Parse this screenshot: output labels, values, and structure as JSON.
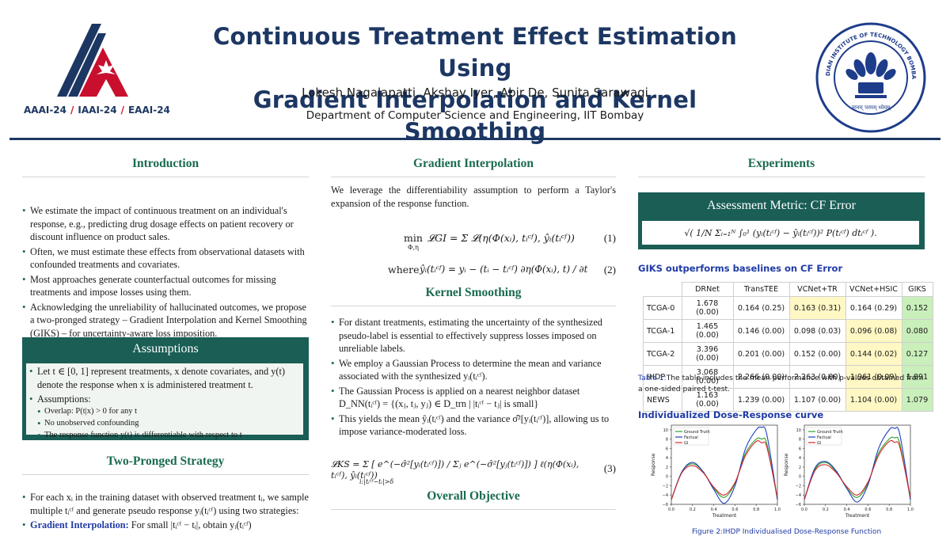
{
  "header": {
    "title_line1": "Continuous Treatment Effect Estimation Using",
    "title_line2": "Gradient Interpolation and Kernel Smoothing",
    "authors": "Lokesh Nagalapatti, Akshay Iyer, Abir De, Sunita Sarawagi",
    "department": "Department of Computer Science and Engineering, IIT Bombay",
    "conference": [
      "AAAI-24",
      "IAAI-24",
      "EAAI-24"
    ],
    "separator": "/",
    "seal_motto": "ज्ञानम् परमम् ध्येयम्",
    "seal_name": "INDIAN INSTITUTE OF TECHNOLOGY BOMBAY"
  },
  "introduction": {
    "heading": "Introduction",
    "bullets": [
      "We estimate the impact of continuous treatment on an individual's response, e.g., predicting drug dosage effects on patient recovery or discount influence on product sales.",
      "Often, we must estimate these effects from observational datasets with confounded treatments and covariates.",
      "Most approaches generate counterfactual outcomes for missing treatments and impose losses using them.",
      "Acknowledging the unreliability of hallucinated outcomes, we propose a two-pronged strategy – Gradient Interpolation and Kernel Smoothing (GIKS) – for uncertainty-aware loss imposition."
    ]
  },
  "assumptions": {
    "heading": "Assumptions",
    "bullet1": "Let t ∈ [0, 1] represent treatments, x denote covariates, and y(t) denote the response when x is administered treatment t.",
    "bullet2": "Assumptions:",
    "sub": [
      "Overlap: P(t|x) > 0 for any t",
      "No unobserved confounding",
      "The response function y(t) is differentiable with respect to t"
    ]
  },
  "two_pronged": {
    "heading": "Two-Pronged Strategy",
    "bullet1": "For each xᵢ in the training dataset with observed treatment tᵢ, we sample multiple tᵢᶜᶠ and generate pseudo response yᵢ(tᵢᶜᶠ) using two strategies:",
    "bullet2_bold": "Gradient Interpolation:",
    "bullet2_rest": " For small |tᵢᶜᶠ − tᵢ|, obtain yᵢ(tᵢᶜᶠ)"
  },
  "gradient_interpolation": {
    "heading": "Gradient Interpolation",
    "text": "We leverage the differentiability assumption to perform a Taylor's expansion of the response function.",
    "eq1_lhs": "min",
    "eq1_sub": "Φ,η",
    "eq1": "𝓛GI = Σ 𝓛(η(Φ(xᵢ), tᵢᶜᶠ), ŷᵢ(tᵢᶜᶠ))",
    "eq1_num": "(1)",
    "eq2_where": "where",
    "eq2": "ŷᵢ(tᵢᶜᶠ) = yᵢ − (tᵢ − tᵢᶜᶠ) ∂η(Φ(xᵢ), t) / ∂t",
    "eq2_num": "(2)"
  },
  "kernel_smoothing": {
    "heading": "Kernel Smoothing",
    "bullets": [
      "For distant treatments, estimating the uncertainty of the synthesized pseudo-label is essential to effectively suppress losses imposed on unreliable labels.",
      "We employ a Gaussian Process to determine the mean and variance associated with the synthesized yᵢ(tᵢᶜᶠ).",
      "The Gaussian Process is applied on a nearest neighbor dataset D_NN(tᵢᶜᶠ) = {(xⱼ, tⱼ, yⱼ) ∈ D_trn | |tᵢᶜᶠ − tⱼ| is small}",
      "This yields the mean ŷᵢ(tᵢᶜᶠ) and the variance σ̂²[yᵢ(tᵢᶜᶠ)], allowing us to impose variance-moderated loss."
    ],
    "eq3": "𝓛KS = Σ  [ e^(−σ̂²[yᵢ(tᵢᶜᶠ)]) / Σⱼ e^(−σ̂²[yⱼ(tᵢᶜᶠ)]) ] ℓ(η(Φ(xᵢ), tᵢᶜᶠ), ŷᵢ(tᵢᶜᶠ))",
    "eq3_sub": "i:|tᵢᶜᶠ−tᵢ|>δ",
    "eq3_num": "(3)"
  },
  "overall": {
    "heading": "Overall Objective"
  },
  "experiments": {
    "heading": "Experiments",
    "metric_heading": "Assessment Metric: CF Error",
    "metric_formula": "√( 1/N Σᵢ₌₁ᴺ ∫₀¹ (yᵢ(tᵢᶜᶠ) − ŷᵢ(tᵢᶜᶠ))² P(tᵢᶜᶠ) dtᵢᶜᶠ ).",
    "table_title": "GIKS outperforms baselines on CF Error",
    "table": {
      "columns": [
        "",
        "DRNet",
        "TransTEE",
        "VCNet+TR",
        "VCNet+HSIC",
        "GIKS"
      ],
      "rows": [
        [
          "TCGA-0",
          "1.678 (0.00)",
          "0.164 (0.25)",
          "0.163 (0.31)",
          "0.164 (0.29)",
          "0.152"
        ],
        [
          "TCGA-1",
          "1.465 (0.00)",
          "0.146 (0.00)",
          "0.098 (0.03)",
          "0.096 (0.08)",
          "0.080"
        ],
        [
          "TCGA-2",
          "3.396 (0.00)",
          "0.201 (0.00)",
          "0.152 (0.00)",
          "0.144 (0.02)",
          "0.127"
        ],
        [
          "IHDP",
          "3.068 (0.00)",
          "2.266 (0.00)",
          "2.263 (0.00)",
          "1.961 (0.09)",
          "1.891"
        ],
        [
          "NEWS",
          "1.163 (0.00)",
          "1.239 (0.00)",
          "1.107 (0.00)",
          "1.104 (0.00)",
          "1.079"
        ]
      ],
      "highlight_yellow": [
        [
          0,
          3
        ],
        [
          1,
          4
        ],
        [
          2,
          4
        ],
        [
          3,
          4
        ],
        [
          4,
          4
        ]
      ],
      "highlight_green": [
        [
          0,
          5
        ],
        [
          1,
          5
        ],
        [
          2,
          5
        ],
        [
          3,
          5
        ],
        [
          4,
          5
        ]
      ]
    },
    "table_caption_label": "Table 1:",
    "table_caption": "The table includes the mean performance with p-values obtained from a one-sided paired t-test.",
    "dose_heading": "Individualized Dose-Response curve",
    "figure_caption": "Figure 2:IHDP Individualised Dose-Response Function",
    "colors": {
      "ground_truth": "#2ca02c",
      "factual": "#1f3fbf",
      "gi": "#d62728"
    }
  },
  "chart_data": [
    {
      "type": "line",
      "x": [
        0.0,
        0.1,
        0.2,
        0.3,
        0.4,
        0.5,
        0.6,
        0.7,
        0.8,
        0.85,
        0.9,
        1.0
      ],
      "series": [
        {
          "name": "Ground Truth",
          "values": [
            -5,
            1,
            2.7,
            1,
            -2.5,
            -4.5,
            -1.5,
            5,
            8,
            8,
            7,
            -5
          ]
        },
        {
          "name": "Factual",
          "values": [
            -5,
            1,
            3,
            1,
            -2.8,
            -5.8,
            -2,
            6,
            10,
            10.5,
            9,
            -5
          ]
        },
        {
          "name": "GI",
          "values": [
            -5,
            0.8,
            2.3,
            0.8,
            -2.3,
            -4,
            -1.3,
            4.5,
            7.5,
            7.2,
            6.3,
            -4.5
          ]
        }
      ],
      "xlabel": "Treatment",
      "ylabel": "Response",
      "xlim": [
        0,
        1
      ],
      "ylim": [
        -6,
        11
      ],
      "xticks": [
        "0.0",
        "0.2",
        "0.4",
        "0.6",
        "0.8",
        "1.0"
      ],
      "yticks": [
        "−6",
        "−4",
        "−2",
        "0",
        "2",
        "4",
        "6",
        "8",
        "10"
      ]
    },
    {
      "type": "line",
      "x": [
        0.0,
        0.1,
        0.2,
        0.3,
        0.4,
        0.5,
        0.6,
        0.7,
        0.8,
        0.85,
        0.9,
        1.0
      ],
      "series": [
        {
          "name": "Ground Truth",
          "values": [
            -5,
            1.5,
            3,
            1,
            -2.5,
            -4.5,
            -1.5,
            5,
            8,
            8.3,
            7,
            -5
          ]
        },
        {
          "name": "Factual",
          "values": [
            -5,
            1.8,
            3.2,
            1.2,
            -2.6,
            -5.5,
            -1.8,
            6,
            10,
            10.3,
            9,
            -5
          ]
        },
        {
          "name": "GI",
          "values": [
            -5,
            1.2,
            2.5,
            0.8,
            -2.2,
            -4,
            -1.2,
            4.5,
            7.5,
            7.3,
            6.3,
            -4.5
          ]
        }
      ],
      "xlabel": "Treatment",
      "ylabel": "Response",
      "xlim": [
        0,
        1
      ],
      "ylim": [
        -6,
        11
      ],
      "xticks": [
        "0.0",
        "0.2",
        "0.4",
        "0.6",
        "0.8",
        "1.0"
      ],
      "yticks": [
        "−6",
        "−4",
        "−2",
        "0",
        "2",
        "4",
        "6",
        "8",
        "10"
      ]
    }
  ]
}
